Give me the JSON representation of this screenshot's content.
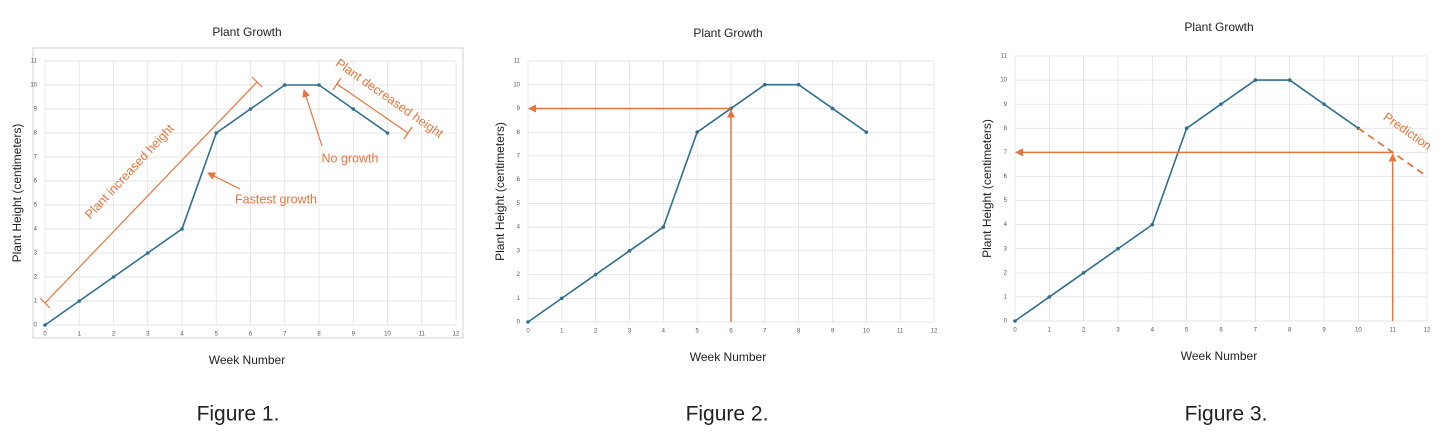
{
  "chart_data": [
    {
      "type": "line",
      "title": "Plant Growth",
      "x_label": "Week Number",
      "y_label": "Plant Height (centimeters)",
      "caption": "Figure 1.",
      "x": [
        0,
        1,
        2,
        3,
        4,
        5,
        6,
        7,
        8,
        9,
        10
      ],
      "values": [
        0,
        1,
        2,
        3,
        4,
        8,
        9,
        10,
        10,
        9,
        8
      ],
      "color": "#2e6f8e",
      "xlim": [
        0,
        12
      ],
      "xticks": [
        0,
        1,
        2,
        3,
        4,
        5,
        6,
        7,
        8,
        9,
        10,
        11,
        12
      ],
      "ylim": [
        0,
        11
      ],
      "yticks": [
        0,
        1,
        2,
        3,
        4,
        5,
        6,
        7,
        8,
        9,
        10,
        11
      ],
      "grid": true,
      "annotation_color": "#e8743b",
      "annotations": [
        "Plant increased height",
        "Plant decreased height",
        "No growth",
        "Fastest growth"
      ]
    },
    {
      "type": "line",
      "title": "Plant Growth",
      "x_label": "Week Number",
      "y_label": "Plant Height (centimeters)",
      "caption": "Figure 2.",
      "x": [
        0,
        1,
        2,
        3,
        4,
        5,
        6,
        7,
        8,
        9,
        10
      ],
      "values": [
        0,
        1,
        2,
        3,
        4,
        8,
        9,
        10,
        10,
        9,
        8
      ],
      "color": "#2e6f8e",
      "xlim": [
        0,
        12
      ],
      "xticks": [
        0,
        1,
        2,
        3,
        4,
        5,
        6,
        7,
        8,
        9,
        10,
        11,
        12
      ],
      "ylim": [
        0,
        11
      ],
      "yticks": [
        0,
        1,
        2,
        3,
        4,
        5,
        6,
        7,
        8,
        9,
        10,
        11
      ],
      "grid": true,
      "annotation_color": "#e8743b",
      "reference": {
        "x": 6,
        "y": 9
      }
    },
    {
      "type": "line",
      "title": "Plant Growth",
      "x_label": "Week Number",
      "y_label": "Plant Height (centimeters)",
      "caption": "Figure 3.",
      "x": [
        0,
        1,
        2,
        3,
        4,
        5,
        6,
        7,
        8,
        9,
        10
      ],
      "values": [
        0,
        1,
        2,
        3,
        4,
        8,
        9,
        10,
        10,
        9,
        8
      ],
      "color": "#2e6f8e",
      "xlim": [
        0,
        12
      ],
      "xticks": [
        0,
        1,
        2,
        3,
        4,
        5,
        6,
        7,
        8,
        9,
        10,
        11,
        12
      ],
      "ylim": [
        0,
        11
      ],
      "yticks": [
        0,
        1,
        2,
        3,
        4,
        5,
        6,
        7,
        8,
        9,
        10,
        11
      ],
      "grid": true,
      "annotation_color": "#e8743b",
      "annotations": [
        "Prediction"
      ],
      "prediction": {
        "x": [
          10,
          12
        ],
        "values": [
          8,
          6
        ]
      },
      "reference": {
        "x": 11,
        "y": 7
      }
    }
  ]
}
